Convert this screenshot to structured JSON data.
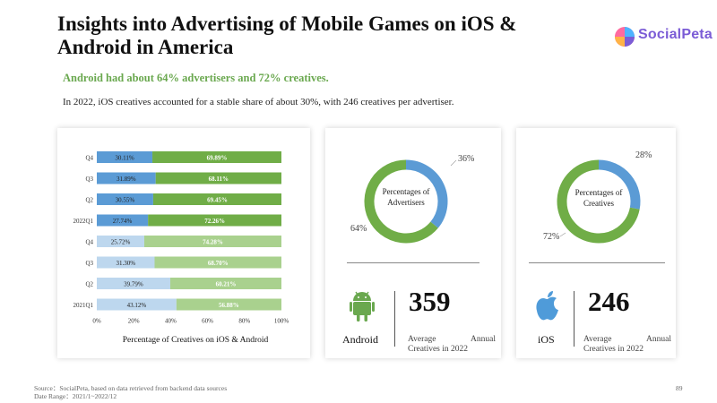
{
  "title": "Insights into Advertising of Mobile Games on iOS & Android in America",
  "logo": {
    "text": "SocialPeta"
  },
  "subtitle": "Android had about 64% advertisers and 72% creatives.",
  "description": "In 2022, iOS creatives accounted for a stable share of about 30%, with 246 creatives per advertiser.",
  "colors": {
    "ios_2022": "#5b9bd5",
    "android_2022": "#70ad47",
    "ios_2021": "#bdd7ee",
    "android_2021": "#a9d18e",
    "donut_ios": "#5b9bd5",
    "donut_android": "#70ad47"
  },
  "chart_data": [
    {
      "type": "bar",
      "orientation": "horizontal-stacked",
      "title": "Percentage of Creatives on iOS & Android",
      "categories": [
        "Q4",
        "Q3",
        "Q2",
        "2022Q1",
        "Q4",
        "Q3",
        "Q2",
        "2021Q1"
      ],
      "series": [
        {
          "values": [
            30.11,
            31.89,
            30.55,
            27.74,
            25.72,
            31.3,
            39.79,
            43.12
          ]
        },
        {
          "values": [
            69.89,
            68.11,
            69.45,
            72.26,
            74.28,
            68.7,
            60.21,
            56.88
          ]
        }
      ],
      "xlim": [
        0,
        100
      ],
      "xticks": [
        "0%",
        "20%",
        "40%",
        "60%",
        "80%",
        "100%"
      ]
    },
    {
      "type": "pie",
      "title": "Percentages of Advertisers",
      "labels": [
        "36%",
        "64%"
      ],
      "values": [
        36,
        64
      ]
    },
    {
      "type": "pie",
      "title": "Percentages of Creatives",
      "labels": [
        "28%",
        "72%"
      ],
      "values": [
        28,
        72
      ]
    }
  ],
  "android_card": {
    "platform": "Android",
    "number": "359",
    "caption_line1": "Average Annual",
    "caption_line2": "Creatives in 2022",
    "icon": "android-icon"
  },
  "ios_card": {
    "platform": "iOS",
    "number": "246",
    "caption_line1": "Average Annual",
    "caption_line2": "Creatives in 2022",
    "icon": "apple-icon"
  },
  "footer": {
    "source": "Source：SocialPeta, based on data retrieved from backend data sources",
    "date_range": "Date Range：2021/1~2022/12",
    "page_number": "89"
  }
}
